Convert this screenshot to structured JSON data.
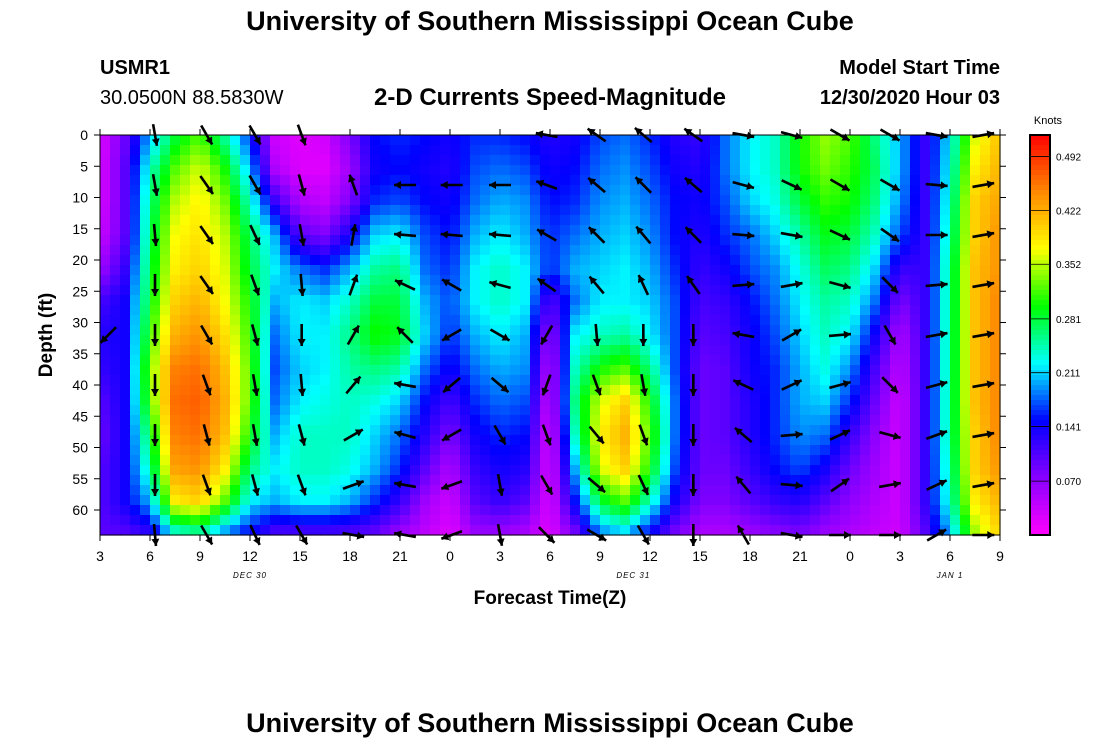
{
  "page": {
    "title_top": "University of Southern Mississippi Ocean Cube",
    "title_bottom": "University of Southern Mississippi Ocean Cube",
    "station_id": "USMR1",
    "station_coords": "30.0500N 88.5830W",
    "plot_title": "2-D Currents Speed-Magnitude",
    "model_start_label": "Model Start Time",
    "model_start_value": "12/30/2020 Hour 03"
  },
  "chart_data": {
    "type": "heatmap",
    "title": "2-D Currents Speed-Magnitude",
    "xlabel": "Forecast Time(Z)",
    "ylabel": "Depth (ft)",
    "x_tick_labels": [
      "3",
      "6",
      "9",
      "12",
      "15",
      "18",
      "21",
      "0",
      "3",
      "6",
      "9",
      "12",
      "15",
      "18",
      "21",
      "0",
      "3",
      "6",
      "9"
    ],
    "x_range_hours": [
      0,
      54
    ],
    "date_labels": [
      {
        "hour": 9,
        "text": "DEC 30"
      },
      {
        "hour": 32,
        "text": "DEC 31"
      },
      {
        "hour": 51,
        "text": "JAN 1"
      }
    ],
    "y_ticks": [
      0,
      5,
      10,
      15,
      20,
      25,
      30,
      35,
      40,
      45,
      50,
      55,
      60
    ],
    "y_range": [
      0,
      64
    ],
    "y_inverted": true,
    "colorbar": {
      "label": "Knots",
      "range": [
        0,
        0.52
      ],
      "tick_values": [
        0.07,
        0.141,
        0.211,
        0.281,
        0.352,
        0.422,
        0.492
      ],
      "tick_labels": [
        "0.070",
        "0.141",
        "0.211",
        "0.281",
        "0.352",
        "0.422",
        "0.492"
      ],
      "colors": [
        "#ff00ff",
        "#8800ff",
        "#0000ff",
        "#00ffff",
        "#00ff00",
        "#ffff00",
        "#ff8800",
        "#ff0000"
      ]
    },
    "time_nodes": [
      0,
      1.5,
      3,
      4.5,
      6,
      7.5,
      9,
      10.5,
      12,
      13.5,
      15,
      16.5,
      18,
      19.5,
      21,
      22.5,
      24,
      25.5,
      27,
      28.5,
      30,
      31.5,
      33,
      34.5,
      36,
      37.5,
      39,
      40.5,
      42,
      43.5,
      45,
      46.5,
      48,
      49.5,
      51,
      52.5,
      54
    ],
    "speed_profiles": [
      [
        0.02,
        0.02,
        0.02,
        0.03,
        0.06,
        0.11,
        0.13,
        0.12,
        0.1,
        0.09,
        0.1,
        0.1,
        0.1
      ],
      [
        0.09,
        0.1,
        0.1,
        0.1,
        0.12,
        0.14,
        0.14,
        0.14,
        0.14,
        0.14,
        0.14,
        0.14,
        0.1
      ],
      [
        0.2,
        0.24,
        0.26,
        0.27,
        0.28,
        0.29,
        0.31,
        0.33,
        0.32,
        0.28,
        0.25,
        0.2,
        0.12
      ],
      [
        0.28,
        0.32,
        0.35,
        0.37,
        0.38,
        0.4,
        0.42,
        0.45,
        0.46,
        0.45,
        0.43,
        0.38,
        0.22
      ],
      [
        0.32,
        0.36,
        0.38,
        0.39,
        0.4,
        0.42,
        0.44,
        0.46,
        0.47,
        0.46,
        0.44,
        0.4,
        0.24
      ],
      [
        0.25,
        0.3,
        0.33,
        0.35,
        0.36,
        0.37,
        0.39,
        0.41,
        0.42,
        0.41,
        0.38,
        0.32,
        0.18
      ],
      [
        0.16,
        0.2,
        0.24,
        0.27,
        0.28,
        0.3,
        0.31,
        0.32,
        0.32,
        0.3,
        0.26,
        0.22,
        0.14
      ],
      [
        0.03,
        0.05,
        0.12,
        0.2,
        0.22,
        0.2,
        0.18,
        0.17,
        0.18,
        0.2,
        0.22,
        0.2,
        0.1
      ],
      [
        0.02,
        0.02,
        0.05,
        0.1,
        0.18,
        0.22,
        0.22,
        0.21,
        0.22,
        0.24,
        0.24,
        0.22,
        0.1
      ],
      [
        0.03,
        0.02,
        0.04,
        0.08,
        0.16,
        0.21,
        0.22,
        0.22,
        0.23,
        0.24,
        0.24,
        0.22,
        0.1
      ],
      [
        0.08,
        0.06,
        0.08,
        0.14,
        0.2,
        0.24,
        0.26,
        0.25,
        0.24,
        0.24,
        0.23,
        0.2,
        0.1
      ],
      [
        0.15,
        0.14,
        0.16,
        0.21,
        0.25,
        0.28,
        0.3,
        0.26,
        0.23,
        0.21,
        0.2,
        0.16,
        0.09
      ],
      [
        0.16,
        0.15,
        0.17,
        0.22,
        0.26,
        0.28,
        0.29,
        0.25,
        0.21,
        0.18,
        0.16,
        0.12,
        0.06
      ],
      [
        0.15,
        0.14,
        0.15,
        0.17,
        0.18,
        0.2,
        0.21,
        0.18,
        0.15,
        0.13,
        0.1,
        0.06,
        0.04
      ],
      [
        0.14,
        0.13,
        0.14,
        0.15,
        0.16,
        0.17,
        0.16,
        0.14,
        0.11,
        0.08,
        0.05,
        0.03,
        0.02
      ],
      [
        0.16,
        0.17,
        0.18,
        0.2,
        0.22,
        0.22,
        0.2,
        0.18,
        0.16,
        0.14,
        0.12,
        0.1,
        0.06
      ],
      [
        0.16,
        0.18,
        0.2,
        0.22,
        0.24,
        0.24,
        0.22,
        0.2,
        0.18,
        0.16,
        0.14,
        0.12,
        0.06
      ],
      [
        0.15,
        0.17,
        0.19,
        0.2,
        0.22,
        0.22,
        0.2,
        0.19,
        0.17,
        0.15,
        0.13,
        0.1,
        0.05
      ],
      [
        0.13,
        0.14,
        0.15,
        0.16,
        0.16,
        0.1,
        0.06,
        0.04,
        0.03,
        0.02,
        0.02,
        0.02,
        0.02
      ],
      [
        0.14,
        0.15,
        0.16,
        0.18,
        0.2,
        0.18,
        0.22,
        0.24,
        0.26,
        0.24,
        0.2,
        0.15,
        0.08
      ],
      [
        0.17,
        0.18,
        0.19,
        0.2,
        0.21,
        0.22,
        0.24,
        0.3,
        0.36,
        0.38,
        0.36,
        0.28,
        0.18
      ],
      [
        0.18,
        0.19,
        0.2,
        0.21,
        0.22,
        0.22,
        0.25,
        0.32,
        0.4,
        0.42,
        0.4,
        0.32,
        0.2
      ],
      [
        0.16,
        0.17,
        0.18,
        0.19,
        0.2,
        0.21,
        0.22,
        0.26,
        0.3,
        0.32,
        0.3,
        0.24,
        0.14
      ],
      [
        0.13,
        0.14,
        0.15,
        0.15,
        0.16,
        0.17,
        0.17,
        0.17,
        0.18,
        0.18,
        0.17,
        0.14,
        0.08
      ],
      [
        0.12,
        0.13,
        0.14,
        0.13,
        0.12,
        0.11,
        0.1,
        0.09,
        0.09,
        0.09,
        0.09,
        0.08,
        0.05
      ],
      [
        0.18,
        0.18,
        0.17,
        0.16,
        0.14,
        0.12,
        0.11,
        0.1,
        0.1,
        0.1,
        0.09,
        0.08,
        0.05
      ],
      [
        0.22,
        0.22,
        0.21,
        0.18,
        0.17,
        0.15,
        0.14,
        0.14,
        0.13,
        0.13,
        0.12,
        0.1,
        0.06
      ],
      [
        0.24,
        0.24,
        0.23,
        0.21,
        0.19,
        0.18,
        0.17,
        0.16,
        0.16,
        0.16,
        0.15,
        0.12,
        0.07
      ],
      [
        0.3,
        0.3,
        0.28,
        0.25,
        0.23,
        0.22,
        0.21,
        0.2,
        0.2,
        0.19,
        0.17,
        0.13,
        0.08
      ],
      [
        0.34,
        0.33,
        0.31,
        0.29,
        0.27,
        0.25,
        0.24,
        0.23,
        0.21,
        0.18,
        0.14,
        0.1,
        0.06
      ],
      [
        0.32,
        0.31,
        0.3,
        0.28,
        0.26,
        0.24,
        0.22,
        0.19,
        0.16,
        0.12,
        0.09,
        0.07,
        0.05
      ],
      [
        0.26,
        0.27,
        0.26,
        0.24,
        0.21,
        0.18,
        0.14,
        0.11,
        0.09,
        0.07,
        0.06,
        0.05,
        0.04
      ],
      [
        0.2,
        0.2,
        0.19,
        0.17,
        0.12,
        0.08,
        0.05,
        0.04,
        0.03,
        0.03,
        0.03,
        0.03,
        0.03
      ],
      [
        0.12,
        0.12,
        0.12,
        0.12,
        0.12,
        0.12,
        0.12,
        0.12,
        0.12,
        0.12,
        0.12,
        0.12,
        0.1
      ],
      [
        0.22,
        0.23,
        0.24,
        0.25,
        0.26,
        0.26,
        0.26,
        0.26,
        0.26,
        0.26,
        0.25,
        0.24,
        0.2
      ],
      [
        0.36,
        0.38,
        0.4,
        0.4,
        0.41,
        0.41,
        0.41,
        0.41,
        0.41,
        0.4,
        0.4,
        0.38,
        0.34
      ],
      [
        0.41,
        0.42,
        0.43,
        0.44,
        0.44,
        0.45,
        0.45,
        0.45,
        0.45,
        0.45,
        0.44,
        0.42,
        0.4
      ]
    ],
    "vector_times": [
      0.5,
      3.3,
      6.4,
      9.3,
      12.1,
      15.2,
      18.3,
      21.1,
      24,
      26.8,
      29.8,
      32.6,
      35.6,
      38.6,
      41.5,
      44.4,
      47.4,
      50.2,
      53
    ],
    "vector_depths": [
      0,
      8,
      16,
      24,
      32,
      40,
      48,
      56,
      64
    ],
    "vector_directions_deg": [
      [
        null,
        null,
        null,
        null,
        315,
        null,
        null,
        null,
        null
      ],
      [
        10,
        10,
        5,
        0,
        0,
        0,
        0,
        0,
        5
      ],
      [
        30,
        35,
        35,
        35,
        30,
        20,
        15,
        20,
        30
      ],
      [
        30,
        30,
        25,
        20,
        15,
        10,
        10,
        15,
        25
      ],
      [
        20,
        15,
        10,
        5,
        0,
        5,
        15,
        20,
        30
      ],
      [
        null,
        200,
        170,
        160,
        150,
        140,
        120,
        110,
        80
      ],
      [
        null,
        270,
        265,
        245,
        225,
        260,
        255,
        260,
        260
      ],
      [
        null,
        270,
        265,
        240,
        300,
        310,
        300,
        290,
        290
      ],
      [
        null,
        270,
        265,
        255,
        60,
        50,
        30,
        10,
        10
      ],
      [
        260,
        250,
        240,
        235,
        330,
        340,
        20,
        30,
        45
      ],
      [
        235,
        230,
        225,
        220,
        5,
        20,
        40,
        50,
        60
      ],
      [
        230,
        225,
        220,
        205,
        0,
        10,
        20,
        25,
        30
      ],
      [
        235,
        230,
        225,
        215,
        0,
        0,
        0,
        0,
        0
      ],
      [
        80,
        75,
        85,
        95,
        260,
        245,
        230,
        220,
        210
      ],
      [
        75,
        65,
        80,
        100,
        120,
        115,
        95,
        85,
        80
      ],
      [
        60,
        60,
        65,
        75,
        95,
        105,
        115,
        125,
        90
      ],
      [
        60,
        60,
        55,
        45,
        30,
        45,
        75,
        100,
        90
      ],
      [
        80,
        85,
        90,
        95,
        100,
        105,
        110,
        115,
        120
      ],
      [
        100,
        100,
        100,
        100,
        100,
        100,
        100,
        100,
        90
      ]
    ]
  }
}
